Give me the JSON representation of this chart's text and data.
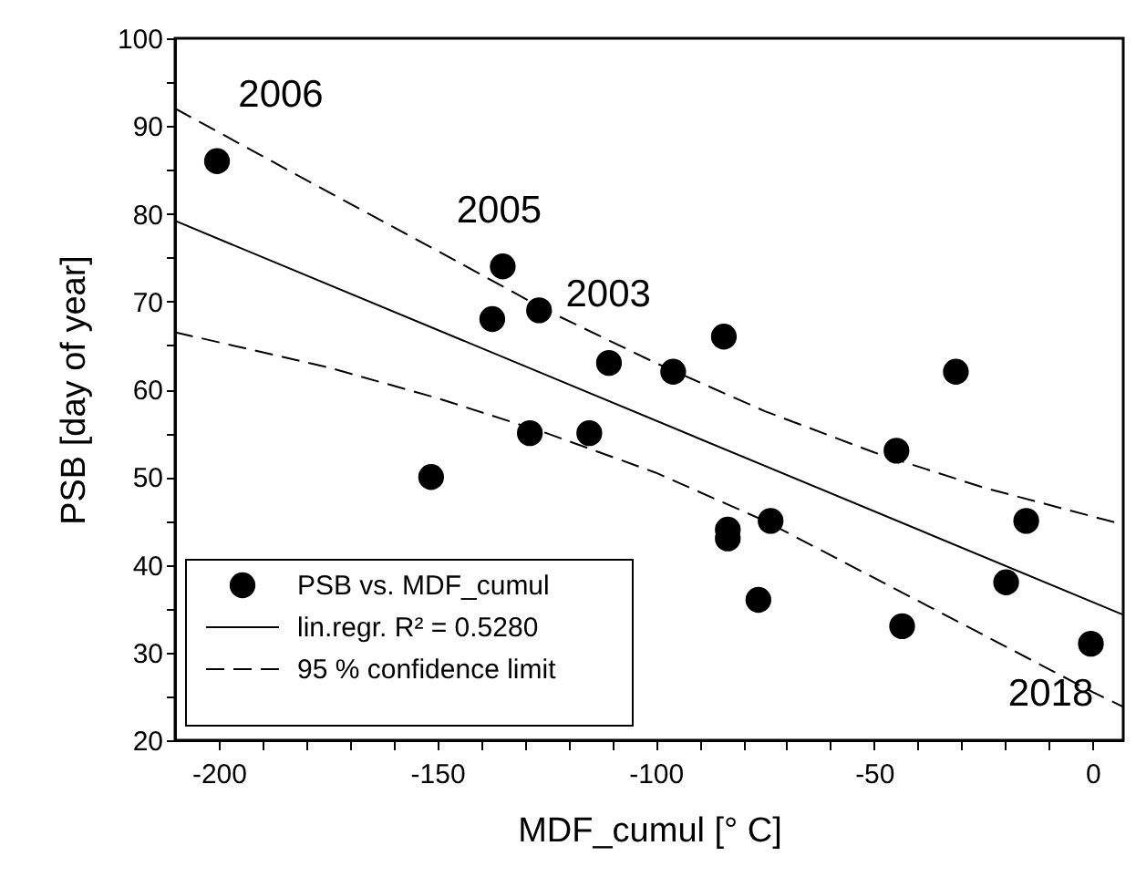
{
  "chart_data": {
    "type": "scatter",
    "xlabel": "MDF_cumul [° C]",
    "ylabel": "PSB [day of year]",
    "xlim": [
      -210,
      7
    ],
    "ylim": [
      20,
      100
    ],
    "xticks": [
      -200,
      {
        "value": -190,
        "label": null
      },
      {
        "value": -180,
        "label": null
      },
      {
        "value": -170,
        "label": null
      },
      {
        "value": -160,
        "label": null
      },
      -150,
      {
        "value": -140,
        "label": null
      },
      {
        "value": -130,
        "label": null
      },
      {
        "value": -120,
        "label": null
      },
      {
        "value": -110,
        "label": null
      },
      -100,
      {
        "value": -90,
        "label": null
      },
      {
        "value": -80,
        "label": null
      },
      {
        "value": -70,
        "label": null
      },
      {
        "value": -60,
        "label": null
      },
      -50,
      {
        "value": -40,
        "label": null
      },
      {
        "value": -30,
        "label": null
      },
      {
        "value": -20,
        "label": null
      },
      {
        "value": -10,
        "label": null
      },
      0
    ],
    "yticks": [
      20,
      {
        "value": 25,
        "label": null
      },
      30,
      {
        "value": 35,
        "label": null
      },
      40,
      {
        "value": 45,
        "label": null
      },
      50,
      {
        "value": 55,
        "label": null
      },
      60,
      {
        "value": 65,
        "label": null
      },
      70,
      {
        "value": 75,
        "label": null
      },
      80,
      {
        "value": 85,
        "label": null
      },
      90,
      {
        "value": 95,
        "label": null
      },
      100
    ],
    "grid": false,
    "legend": "bottom left",
    "series": [
      {
        "name": "PSB vs. MDF_cumul",
        "marker": "circle",
        "color": "#000000",
        "x": [
          -200.4,
          -135,
          -137.4,
          -126.7,
          -128.8,
          -115.2,
          -110.7,
          -96,
          -84.4,
          -151.4,
          -83.5,
          -83.5,
          -73.7,
          -76.5,
          -44.9,
          -43.6,
          -31.3,
          -15.2,
          -19.8,
          -0.4
        ],
        "values": [
          86,
          74,
          68,
          69,
          55,
          55,
          63,
          62,
          66,
          50,
          44,
          43,
          45,
          36,
          53,
          33,
          62,
          45,
          38,
          31
        ]
      },
      {
        "name": "lin.regr. R² = 0.5280",
        "type": "line",
        "line_style": "solid",
        "color": "#000000",
        "x": [
          -210,
          7
        ],
        "values": [
          79.2,
          34.3
        ]
      },
      {
        "name": "95 % confidence limit",
        "type": "line",
        "line_style": "dashed",
        "color": "#000000",
        "x": [
          -210,
          -175,
          -150,
          -125,
          -100,
          -75,
          -50,
          -25,
          0,
          7
        ],
        "values": [
          92,
          82.5,
          75.8,
          69,
          63,
          57.5,
          52.8,
          48.8,
          45.5,
          44.6
        ]
      },
      {
        "type": "line",
        "line_style": "dashed",
        "color": "#000000",
        "x": [
          -210,
          -175,
          -150,
          -125,
          -100,
          -75,
          -50,
          -25,
          0,
          7
        ],
        "values": [
          66.5,
          62.5,
          59,
          55,
          50.5,
          45,
          38.5,
          32,
          25.5,
          23.8
        ]
      }
    ],
    "annotations": [
      {
        "text": "2006",
        "x": -200.4,
        "y": 86
      },
      {
        "text": "2005",
        "x": -135,
        "y": 74
      },
      {
        "text": "2003",
        "x": -126.7,
        "y": 69
      },
      {
        "text": "2018",
        "x": -0.4,
        "y": 31
      }
    ]
  }
}
